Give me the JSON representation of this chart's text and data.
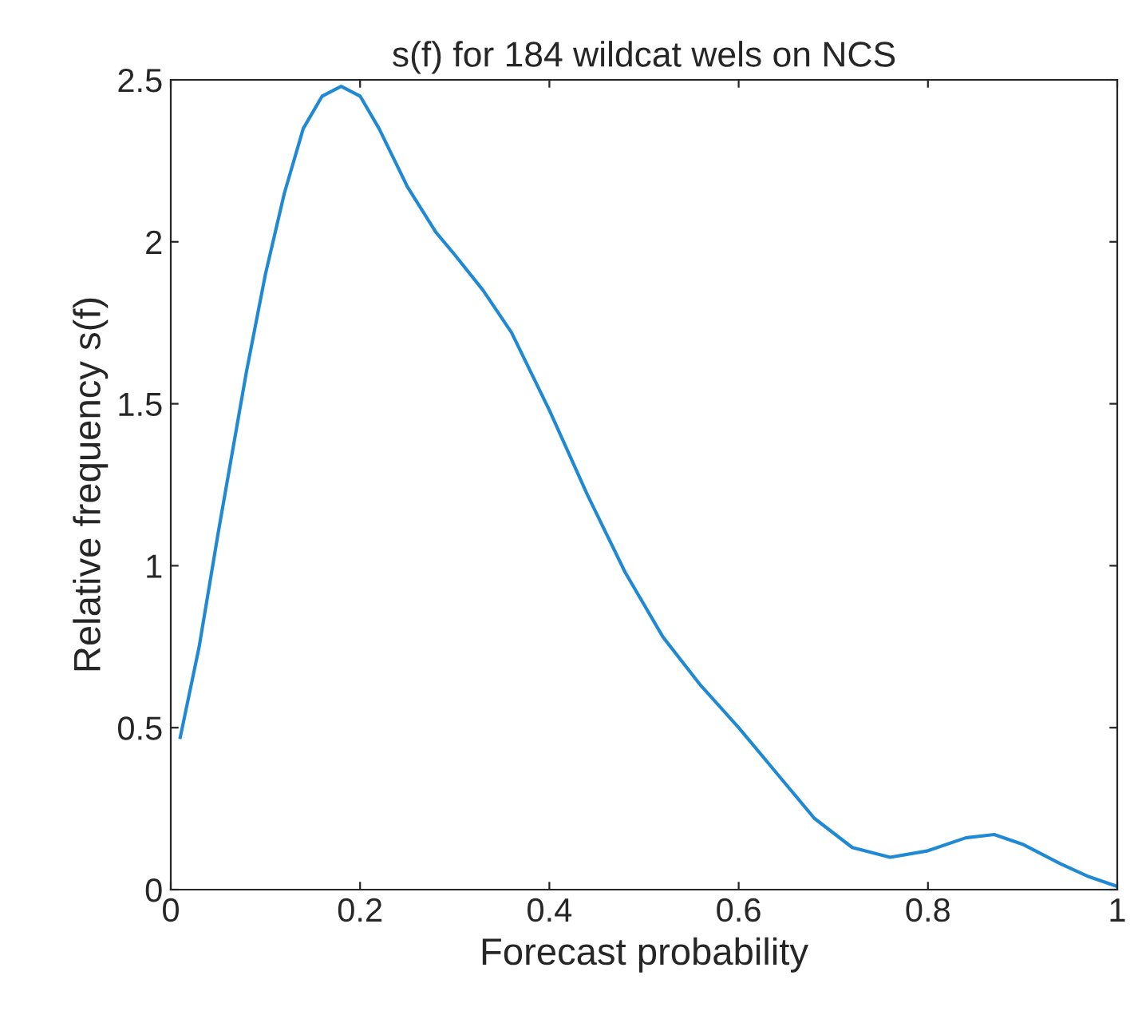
{
  "chart_data": {
    "type": "line",
    "title": "s(f) for 184 wildcat wels on NCS",
    "xlabel": "Forecast probability",
    "ylabel": "Relative frequency s(f)",
    "x": [
      0.01,
      0.03,
      0.05,
      0.08,
      0.1,
      0.12,
      0.14,
      0.16,
      0.18,
      0.2,
      0.22,
      0.25,
      0.28,
      0.3,
      0.33,
      0.36,
      0.4,
      0.44,
      0.48,
      0.52,
      0.56,
      0.6,
      0.64,
      0.68,
      0.72,
      0.76,
      0.8,
      0.84,
      0.87,
      0.9,
      0.94,
      0.97,
      1.0
    ],
    "series": [
      {
        "color": "#1f8ad3",
        "values": [
          0.47,
          0.75,
          1.1,
          1.6,
          1.9,
          2.15,
          2.35,
          2.45,
          2.48,
          2.45,
          2.35,
          2.17,
          2.03,
          1.96,
          1.85,
          1.72,
          1.48,
          1.22,
          0.98,
          0.78,
          0.63,
          0.5,
          0.36,
          0.22,
          0.13,
          0.1,
          0.12,
          0.16,
          0.17,
          0.14,
          0.08,
          0.04,
          0.01
        ]
      }
    ],
    "xlim": [
      0,
      1
    ],
    "xticks": [
      0,
      0.2,
      0.4,
      0.6,
      0.8,
      1
    ],
    "ylim": [
      0,
      2.5
    ],
    "yticks": [
      0,
      0.5,
      1,
      1.5,
      2,
      2.5
    ],
    "grid": false,
    "legend": false,
    "marker": "none",
    "line_style": "solid"
  }
}
